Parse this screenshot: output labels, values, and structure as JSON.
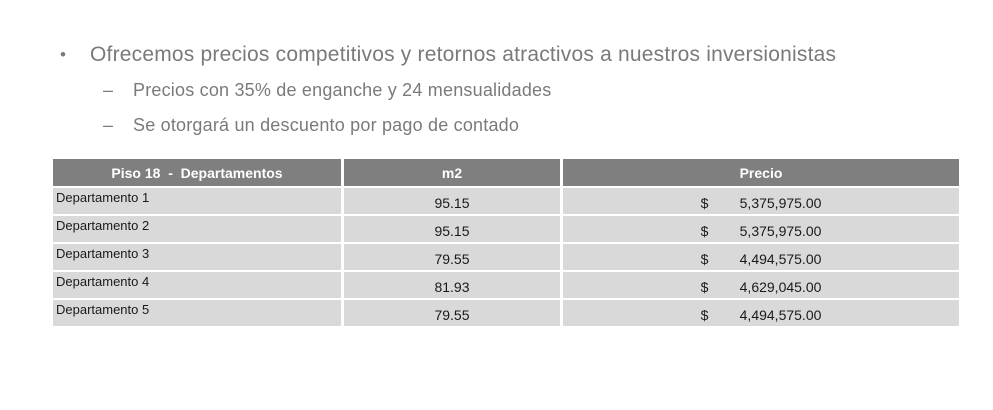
{
  "slide": {
    "bullet": {
      "marker": "•",
      "text": "Ofrecemos precios competitivos y retornos atractivos a nuestros inversionistas"
    },
    "sub_bullets": [
      {
        "marker": "–",
        "text": "Precios con 35% de enganche y 24 mensualidades"
      },
      {
        "marker": "–",
        "text": "Se otorgará un descuento por pago de contado"
      }
    ]
  },
  "table": {
    "headers": {
      "departamentos": "Piso 18  -  Departamentos",
      "m2": "m2",
      "precio": "Precio"
    },
    "currency_symbol": "$",
    "rows": [
      {
        "name": "Departamento 1",
        "m2": "95.15",
        "price": "5,375,975.00"
      },
      {
        "name": "Departamento 2",
        "m2": "95.15",
        "price": "5,375,975.00"
      },
      {
        "name": "Departamento 3",
        "m2": "79.55",
        "price": "4,494,575.00"
      },
      {
        "name": "Departamento 4",
        "m2": "81.93",
        "price": "4,629,045.00"
      },
      {
        "name": "Departamento 5",
        "m2": "79.55",
        "price": "4,494,575.00"
      }
    ]
  },
  "colors": {
    "header_bg": "#7f7f7f",
    "header_text": "#ffffff",
    "row_bg": "#d9d9d9",
    "body_text": "#1a1a1a",
    "bullet_text": "#7a7a7a",
    "background": "#ffffff"
  }
}
